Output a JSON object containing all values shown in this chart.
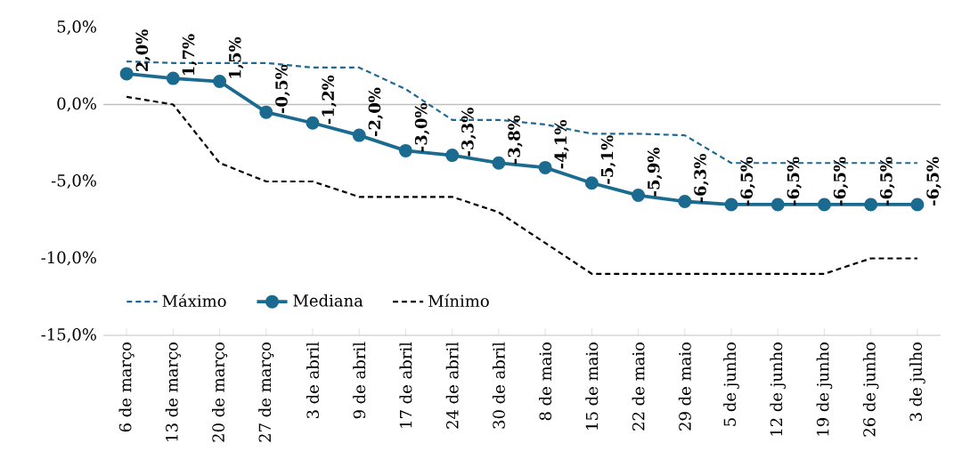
{
  "chart_data": {
    "type": "line",
    "categories": [
      "6 de março",
      "13 de março",
      "20 de março",
      "27 de março",
      "3 de abril",
      "9 de abril",
      "17 de abril",
      "24 de abril",
      "30 de abril",
      "8 de maio",
      "15 de maio",
      "22 de maio",
      "29 de maio",
      "5 de junho",
      "12 de junho",
      "19 de junho",
      "26 de junho",
      "3 de julho"
    ],
    "series": [
      {
        "name": "Máximo",
        "color": "#1f6a94",
        "line_style": "dashed",
        "marker": "none",
        "values": [
          2.8,
          2.7,
          2.7,
          2.7,
          2.4,
          2.4,
          1.0,
          -1.0,
          -1.0,
          -1.3,
          -1.9,
          -1.9,
          -2.0,
          -3.8,
          -3.8,
          -3.8,
          -3.8,
          -3.8
        ]
      },
      {
        "name": "Mediana",
        "color": "#1b6a8f",
        "line_style": "solid",
        "marker": "circle",
        "values": [
          2.0,
          1.7,
          1.5,
          -0.5,
          -1.2,
          -2.0,
          -3.0,
          -3.3,
          -3.8,
          -4.1,
          -5.1,
          -5.9,
          -6.3,
          -6.5,
          -6.5,
          -6.5,
          -6.5,
          -6.5
        ],
        "value_labels": [
          "2,0%",
          "1,7%",
          "1,5%",
          "-0,5%",
          "-1,2%",
          "-2,0%",
          "-3,0%",
          "-3,3%",
          "-3,8%",
          "-4,1%",
          "-5,1%",
          "-5,9%",
          "-6,3%",
          "-6,5%",
          "-6,5%",
          "-6,5%",
          "-6,5%",
          "-6,5%"
        ]
      },
      {
        "name": "Mínimo",
        "color": "#000000",
        "line_style": "dashed",
        "marker": "none",
        "values": [
          0.5,
          0.0,
          -3.8,
          -5.0,
          -5.0,
          -6.0,
          -6.0,
          -6.0,
          -7.0,
          -9.0,
          -11.0,
          -11.0,
          -11.0,
          -11.0,
          -11.0,
          -11.0,
          -10.0,
          -10.0
        ]
      }
    ],
    "ylim": [
      -15,
      5
    ],
    "yticks": [
      {
        "value": -15,
        "label": "-15,0%"
      },
      {
        "value": -10,
        "label": "-10,0%"
      },
      {
        "value": -5,
        "label": "-5,0%"
      },
      {
        "value": 0,
        "label": "0,0%"
      },
      {
        "value": 5,
        "label": "5,0%"
      }
    ],
    "ref_lines": [
      {
        "axis": "y",
        "value": 0,
        "color": "#bfbfbf"
      }
    ],
    "grid": false,
    "legend": "bottom left"
  }
}
